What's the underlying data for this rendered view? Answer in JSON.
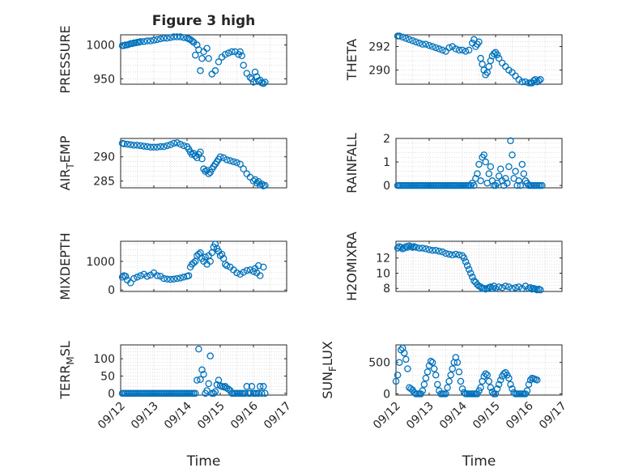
{
  "figure": {
    "title": "Figure 3 high",
    "x_axis_label": "Time",
    "x_tick_labels": [
      "09/12",
      "09/13",
      "09/14",
      "09/15",
      "09/16",
      "09/17"
    ],
    "marker_color": "#0072BD",
    "axis_color": "#262626",
    "grid_color": "#c8c8c8"
  },
  "chart_data": [
    {
      "type": "scatter",
      "title": "Figure 3 high",
      "ylabel": "PRESSURE",
      "ylabel_sub": "",
      "xlabel": "",
      "xlim": [
        0,
        5
      ],
      "ylim": [
        942,
        1015
      ],
      "yticks": [
        950,
        1000
      ],
      "x": [
        0.05,
        0.1,
        0.15,
        0.2,
        0.25,
        0.3,
        0.35,
        0.4,
        0.45,
        0.5,
        0.55,
        0.6,
        0.7,
        0.8,
        0.9,
        1.0,
        1.1,
        1.2,
        1.3,
        1.4,
        1.5,
        1.6,
        1.7,
        1.8,
        1.9,
        2.0,
        2.05,
        2.1,
        2.15,
        2.2,
        2.25,
        2.3,
        2.35,
        2.4,
        2.45,
        2.5,
        2.6,
        2.65,
        2.75,
        2.85,
        2.95,
        3.05,
        3.15,
        3.25,
        3.35,
        3.45,
        3.55,
        3.6,
        3.65,
        3.7,
        3.8,
        3.9,
        3.95,
        4.0,
        4.05,
        4.1,
        4.15,
        4.2,
        4.25,
        4.3,
        4.35
      ],
      "y": [
        999,
        999,
        1000,
        1000,
        1001,
        1002,
        1002,
        1003,
        1003,
        1004,
        1004,
        1005,
        1005,
        1006,
        1006,
        1007,
        1008,
        1009,
        1010,
        1010,
        1011,
        1012,
        1012,
        1012,
        1011,
        1010,
        1009,
        1008,
        1006,
        1004,
        985,
        1000,
        993,
        962,
        980,
        990,
        995,
        980,
        957,
        962,
        975,
        982,
        986,
        988,
        990,
        990,
        986,
        990,
        984,
        970,
        958,
        952,
        950,
        945,
        960,
        953,
        947,
        948,
        944,
        943,
        945
      ],
      "markers_only": true
    },
    {
      "type": "scatter",
      "title": "",
      "ylabel": "THETA",
      "ylabel_sub": "",
      "xlabel": "",
      "xlim": [
        0,
        5
      ],
      "ylim": [
        288.8,
        293.0
      ],
      "yticks": [
        290,
        292
      ],
      "x": [
        0.05,
        0.1,
        0.2,
        0.3,
        0.4,
        0.5,
        0.6,
        0.7,
        0.8,
        0.9,
        1.0,
        1.1,
        1.2,
        1.3,
        1.4,
        1.5,
        1.6,
        1.7,
        1.8,
        1.9,
        2.0,
        2.1,
        2.2,
        2.3,
        2.35,
        2.4,
        2.45,
        2.5,
        2.55,
        2.6,
        2.65,
        2.7,
        2.75,
        2.8,
        2.85,
        2.9,
        2.95,
        3.0,
        3.05,
        3.1,
        3.2,
        3.3,
        3.4,
        3.5,
        3.6,
        3.7,
        3.8,
        3.9,
        4.0,
        4.05,
        4.1,
        4.15,
        4.2,
        4.25,
        4.3,
        4.35
      ],
      "y": [
        292.9,
        292.9,
        292.8,
        292.7,
        292.6,
        292.5,
        292.4,
        292.3,
        292.2,
        292.2,
        292.1,
        292.0,
        291.9,
        291.8,
        291.7,
        291.6,
        291.9,
        292.0,
        291.8,
        291.7,
        291.7,
        291.6,
        291.7,
        292.3,
        292.6,
        292.0,
        292.2,
        292.4,
        291.0,
        290.5,
        290.0,
        289.6,
        289.8,
        290.3,
        290.8,
        291.2,
        291.4,
        291.5,
        291.3,
        291.0,
        290.6,
        290.3,
        290.0,
        289.8,
        289.5,
        289.2,
        289.0,
        289.0,
        288.9,
        288.9,
        288.9,
        289.1,
        289.2,
        289.0,
        289.1,
        289.2
      ],
      "markers_only": true
    },
    {
      "type": "scatter",
      "title": "",
      "ylabel": "AIR",
      "ylabel_sub": "T",
      "ylabel_after": "EMP",
      "xlabel": "",
      "xlim": [
        0,
        5
      ],
      "ylim": [
        283.6,
        293.8
      ],
      "yticks": [
        285,
        290
      ],
      "x": [
        0.05,
        0.1,
        0.2,
        0.3,
        0.4,
        0.5,
        0.6,
        0.7,
        0.8,
        0.9,
        1.0,
        1.1,
        1.2,
        1.3,
        1.4,
        1.5,
        1.6,
        1.7,
        1.8,
        1.9,
        2.0,
        2.05,
        2.1,
        2.15,
        2.2,
        2.25,
        2.3,
        2.35,
        2.4,
        2.45,
        2.5,
        2.55,
        2.6,
        2.65,
        2.7,
        2.75,
        2.8,
        2.85,
        2.9,
        2.95,
        3.0,
        3.1,
        3.2,
        3.3,
        3.4,
        3.5,
        3.6,
        3.7,
        3.8,
        3.9,
        4.0,
        4.05,
        4.1,
        4.15,
        4.2,
        4.25,
        4.3,
        4.35
      ],
      "y": [
        292.8,
        292.7,
        292.6,
        292.5,
        292.4,
        292.4,
        292.3,
        292.2,
        292.1,
        292.0,
        292.0,
        292.0,
        292.1,
        292.1,
        292.3,
        292.5,
        292.8,
        292.9,
        292.6,
        292.3,
        292.1,
        291.6,
        291.0,
        290.5,
        290.7,
        290.2,
        289.8,
        290.5,
        291.0,
        289.6,
        287.5,
        287.0,
        287.2,
        286.5,
        286.8,
        287.5,
        288.0,
        288.5,
        289.0,
        289.5,
        290.0,
        289.8,
        289.4,
        289.2,
        289.0,
        288.8,
        288.5,
        287.5,
        286.5,
        285.8,
        285.0,
        285.3,
        284.6,
        284.9,
        284.2,
        284.4,
        284.0,
        284.1
      ],
      "markers_only": true
    },
    {
      "type": "scatter",
      "title": "",
      "ylabel": "RAINFALL",
      "ylabel_sub": "",
      "xlabel": "",
      "xlim": [
        0,
        5
      ],
      "ylim": [
        -0.1,
        2.0
      ],
      "yticks": [
        0,
        1,
        2
      ],
      "x": [
        0.05,
        0.1,
        0.15,
        0.2,
        0.25,
        0.3,
        0.35,
        0.4,
        0.45,
        0.5,
        0.55,
        0.6,
        0.65,
        0.7,
        0.75,
        0.8,
        0.85,
        0.9,
        0.95,
        1.0,
        1.05,
        1.1,
        1.15,
        1.2,
        1.25,
        1.3,
        1.35,
        1.4,
        1.45,
        1.5,
        1.55,
        1.6,
        1.65,
        1.7,
        1.75,
        1.8,
        1.85,
        1.9,
        1.95,
        2.0,
        2.05,
        2.1,
        2.15,
        2.2,
        2.25,
        2.3,
        2.35,
        2.4,
        2.45,
        2.5,
        2.55,
        2.6,
        2.65,
        2.7,
        2.75,
        2.8,
        2.85,
        2.9,
        2.95,
        3.0,
        3.05,
        3.1,
        3.15,
        3.2,
        3.25,
        3.3,
        3.35,
        3.4,
        3.45,
        3.5,
        3.55,
        3.6,
        3.65,
        3.7,
        3.75,
        3.8,
        3.85,
        3.9,
        3.95,
        4.0,
        4.05,
        4.1,
        4.15,
        4.2,
        4.25,
        4.3,
        4.35,
        4.4
      ],
      "y": [
        0,
        0,
        0,
        0,
        0,
        0,
        0,
        0,
        0,
        0,
        0,
        0,
        0,
        0,
        0,
        0,
        0,
        0,
        0,
        0,
        0,
        0,
        0,
        0,
        0,
        0,
        0,
        0,
        0,
        0,
        0,
        0,
        0,
        0,
        0,
        0,
        0,
        0,
        0,
        0,
        0,
        0,
        0,
        0,
        0,
        0.1,
        0,
        0.3,
        0.5,
        0.9,
        0.2,
        1.2,
        1.3,
        1.0,
        0.1,
        0.5,
        0.8,
        0.2,
        0,
        0,
        0.1,
        0.4,
        0.7,
        0.2,
        0,
        0.3,
        0.1,
        0.8,
        1.9,
        1.3,
        0.3,
        0.6,
        0,
        0.2,
        0,
        0.9,
        0.5,
        0.2,
        0.1,
        0,
        0,
        0,
        0,
        0,
        0,
        0,
        0,
        0
      ],
      "markers_only": true
    },
    {
      "type": "scatter",
      "title": "",
      "ylabel": "MIXDEPTH",
      "ylabel_sub": "",
      "xlabel": "",
      "xlim": [
        0,
        5
      ],
      "ylim": [
        -50,
        1700
      ],
      "yticks": [
        0,
        1000
      ],
      "x": [
        0.05,
        0.1,
        0.15,
        0.2,
        0.3,
        0.4,
        0.5,
        0.6,
        0.7,
        0.8,
        0.9,
        1.0,
        1.1,
        1.2,
        1.3,
        1.4,
        1.5,
        1.6,
        1.7,
        1.8,
        1.9,
        2.0,
        2.05,
        2.1,
        2.15,
        2.2,
        2.25,
        2.3,
        2.35,
        2.4,
        2.45,
        2.5,
        2.55,
        2.6,
        2.65,
        2.7,
        2.75,
        2.8,
        2.85,
        2.9,
        2.95,
        3.0,
        3.05,
        3.1,
        3.15,
        3.2,
        3.3,
        3.4,
        3.5,
        3.6,
        3.7,
        3.8,
        3.9,
        4.0,
        4.05,
        4.1,
        4.15,
        4.2,
        4.3
      ],
      "y": [
        450,
        500,
        480,
        350,
        250,
        400,
        450,
        500,
        550,
        480,
        520,
        600,
        500,
        480,
        400,
        380,
        370,
        380,
        400,
        420,
        450,
        480,
        500,
        800,
        900,
        950,
        1000,
        1200,
        1250,
        1300,
        1100,
        1000,
        1150,
        900,
        1200,
        1000,
        1300,
        1500,
        1600,
        1450,
        1350,
        1200,
        1250,
        1100,
        900,
        850,
        800,
        700,
        600,
        550,
        620,
        680,
        700,
        650,
        750,
        600,
        850,
        500,
        800
      ],
      "markers_only": true
    },
    {
      "type": "scatter",
      "title": "",
      "ylabel": "H2OMIXRA",
      "ylabel_sub": "",
      "xlabel": "",
      "xlim": [
        0,
        5
      ],
      "ylim": [
        7.6,
        14.2
      ],
      "yticks": [
        8,
        10,
        12
      ],
      "x": [
        0.05,
        0.1,
        0.15,
        0.2,
        0.25,
        0.3,
        0.35,
        0.4,
        0.45,
        0.5,
        0.55,
        0.6,
        0.7,
        0.8,
        0.9,
        1.0,
        1.1,
        1.2,
        1.3,
        1.4,
        1.5,
        1.6,
        1.7,
        1.8,
        1.9,
        2.0,
        2.05,
        2.1,
        2.15,
        2.2,
        2.25,
        2.3,
        2.35,
        2.4,
        2.45,
        2.5,
        2.55,
        2.6,
        2.65,
        2.7,
        2.75,
        2.8,
        2.85,
        2.9,
        2.95,
        3.0,
        3.1,
        3.2,
        3.3,
        3.4,
        3.5,
        3.6,
        3.7,
        3.8,
        3.9,
        4.0,
        4.05,
        4.1,
        4.15,
        4.2,
        4.25,
        4.3,
        4.35
      ],
      "y": [
        13.3,
        13.5,
        13.4,
        13.2,
        13.3,
        13.5,
        13.4,
        13.6,
        13.5,
        13.4,
        13.5,
        13.4,
        13.3,
        13.3,
        13.2,
        13.1,
        13.0,
        13.0,
        12.9,
        12.8,
        12.6,
        12.5,
        12.4,
        12.5,
        12.4,
        12.3,
        12.0,
        11.5,
        11.0,
        10.5,
        10.0,
        9.5,
        9.0,
        8.8,
        8.5,
        8.3,
        8.2,
        8.0,
        8.0,
        7.9,
        8.0,
        8.1,
        8.2,
        8.0,
        8.3,
        8.0,
        8.2,
        8.1,
        8.3,
        8.2,
        8.0,
        8.1,
        8.2,
        8.0,
        8.3,
        8.0,
        8.1,
        7.9,
        8.0,
        7.9,
        7.8,
        7.9,
        7.8
      ],
      "markers_only": true
    },
    {
      "type": "scatter",
      "title": "",
      "ylabel": "TERR",
      "ylabel_sub": "M",
      "ylabel_after": "SL",
      "xlabel": "Time",
      "xlim": [
        0,
        5
      ],
      "ylim": [
        -5,
        140
      ],
      "yticks": [
        0,
        50,
        100
      ],
      "x": [
        0.05,
        0.1,
        0.15,
        0.2,
        0.25,
        0.3,
        0.35,
        0.4,
        0.45,
        0.5,
        0.55,
        0.6,
        0.65,
        0.7,
        0.75,
        0.8,
        0.85,
        0.9,
        0.95,
        1.0,
        1.05,
        1.1,
        1.15,
        1.2,
        1.25,
        1.3,
        1.35,
        1.4,
        1.45,
        1.5,
        1.55,
        1.6,
        1.65,
        1.7,
        1.75,
        1.8,
        1.85,
        1.9,
        1.95,
        2.0,
        2.05,
        2.1,
        2.15,
        2.2,
        2.25,
        2.3,
        2.35,
        2.4,
        2.45,
        2.5,
        2.55,
        2.6,
        2.65,
        2.7,
        2.75,
        2.8,
        2.85,
        2.9,
        2.95,
        3.0,
        3.05,
        3.1,
        3.15,
        3.2,
        3.25,
        3.3,
        3.35,
        3.4,
        3.45,
        3.5,
        3.55,
        3.6,
        3.65,
        3.7,
        3.75,
        3.8,
        3.85,
        3.9,
        3.95,
        4.0,
        4.05,
        4.1,
        4.15,
        4.2,
        4.25,
        4.3,
        4.35
      ],
      "y": [
        0,
        0,
        0,
        0,
        0,
        0,
        0,
        0,
        0,
        0,
        0,
        0,
        0,
        0,
        0,
        0,
        0,
        0,
        0,
        0,
        0,
        0,
        0,
        0,
        0,
        0,
        0,
        0,
        0,
        0,
        0,
        0,
        0,
        0,
        0,
        0,
        0,
        0,
        0,
        0,
        0,
        0,
        0,
        0,
        0,
        38,
        128,
        40,
        68,
        55,
        0,
        8,
        28,
        108,
        0,
        0,
        5,
        25,
        38,
        22,
        20,
        18,
        20,
        15,
        12,
        8,
        0,
        0,
        0,
        0,
        0,
        0,
        0,
        0,
        0,
        20,
        0,
        0,
        20,
        0,
        0,
        0,
        0,
        20,
        0,
        20,
        0
      ],
      "markers_only": true
    },
    {
      "type": "scatter",
      "title": "",
      "ylabel": "SUN",
      "ylabel_sub": "F",
      "ylabel_after": "LUX",
      "xlabel": "Time",
      "xlim": [
        0,
        5
      ],
      "ylim": [
        -20,
        780
      ],
      "yticks": [
        0,
        500
      ],
      "x": [
        0.0,
        0.05,
        0.1,
        0.15,
        0.2,
        0.25,
        0.3,
        0.35,
        0.4,
        0.45,
        0.5,
        0.55,
        0.6,
        0.65,
        0.7,
        0.75,
        0.8,
        0.85,
        0.9,
        0.95,
        1.0,
        1.05,
        1.1,
        1.15,
        1.2,
        1.25,
        1.3,
        1.35,
        1.4,
        1.45,
        1.5,
        1.55,
        1.6,
        1.65,
        1.7,
        1.75,
        1.8,
        1.85,
        1.9,
        1.95,
        2.0,
        2.05,
        2.1,
        2.15,
        2.2,
        2.25,
        2.3,
        2.35,
        2.4,
        2.45,
        2.5,
        2.55,
        2.6,
        2.65,
        2.7,
        2.75,
        2.8,
        2.85,
        2.9,
        2.95,
        3.0,
        3.05,
        3.1,
        3.15,
        3.2,
        3.25,
        3.3,
        3.35,
        3.4,
        3.45,
        3.5,
        3.55,
        3.6,
        3.65,
        3.7,
        3.75,
        3.8,
        3.85,
        3.9,
        3.95,
        4.0,
        4.05,
        4.1,
        4.15,
        4.2,
        4.25
      ],
      "y": [
        200,
        300,
        500,
        700,
        730,
        650,
        550,
        400,
        100,
        80,
        60,
        20,
        0,
        0,
        0,
        0,
        50,
        150,
        250,
        350,
        450,
        520,
        500,
        400,
        300,
        150,
        50,
        0,
        0,
        0,
        0,
        100,
        200,
        300,
        400,
        500,
        580,
        500,
        350,
        200,
        80,
        20,
        0,
        0,
        0,
        0,
        0,
        0,
        0,
        0,
        50,
        100,
        200,
        280,
        320,
        300,
        200,
        100,
        30,
        0,
        0,
        80,
        150,
        220,
        280,
        320,
        340,
        300,
        250,
        150,
        80,
        20,
        0,
        0,
        0,
        0,
        0,
        0,
        0,
        50,
        150,
        220,
        250,
        240,
        230,
        220
      ],
      "markers_only": true
    }
  ]
}
